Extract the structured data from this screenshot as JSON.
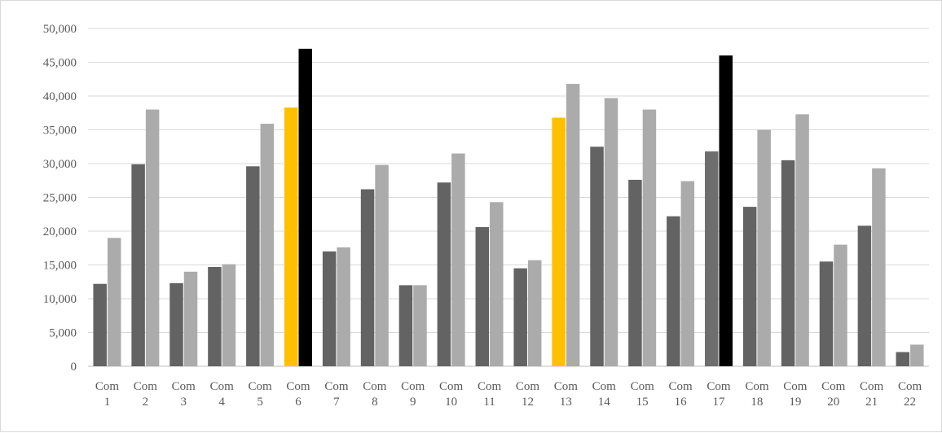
{
  "chart_data": {
    "type": "bar",
    "title": "",
    "xlabel": "",
    "ylabel": "",
    "ylim": [
      0,
      50000
    ],
    "y_ticks": [
      "0",
      "5,000",
      "10,000",
      "15,000",
      "20,000",
      "25,000",
      "30,000",
      "35,000",
      "40,000",
      "45,000",
      "50,000"
    ],
    "y_tick_values": [
      0,
      5000,
      10000,
      15000,
      20000,
      25000,
      30000,
      35000,
      40000,
      45000,
      50000
    ],
    "grid": true,
    "legend": "none",
    "categories": [
      [
        "Com",
        "1"
      ],
      [
        "Com",
        "2"
      ],
      [
        "Com",
        "3"
      ],
      [
        "Com",
        "4"
      ],
      [
        "Com",
        "5"
      ],
      [
        "Com",
        "6"
      ],
      [
        "Com",
        "7"
      ],
      [
        "Com",
        "8"
      ],
      [
        "Com",
        "9"
      ],
      [
        "Com",
        "10"
      ],
      [
        "Com",
        "11"
      ],
      [
        "Com",
        "12"
      ],
      [
        "Com",
        "13"
      ],
      [
        "Com",
        "14"
      ],
      [
        "Com",
        "15"
      ],
      [
        "Com",
        "16"
      ],
      [
        "Com",
        "17"
      ],
      [
        "Com",
        "18"
      ],
      [
        "Com",
        "19"
      ],
      [
        "Com",
        "20"
      ],
      [
        "Com",
        "21"
      ],
      [
        "Com",
        "22"
      ]
    ],
    "series": [
      {
        "color": "#636363",
        "values": [
          12200,
          29900,
          12300,
          14700,
          29600,
          38300,
          17000,
          26200,
          12000,
          27200,
          20600,
          14500,
          36800,
          32500,
          27600,
          22200,
          31800,
          23600,
          30500,
          15500,
          20800,
          2100
        ]
      },
      {
        "color": "#ababab",
        "values": [
          19000,
          38000,
          14000,
          15100,
          35900,
          47000,
          17600,
          29800,
          12000,
          31500,
          24300,
          15700,
          41800,
          39700,
          38000,
          27400,
          46000,
          35000,
          37300,
          18000,
          29300,
          3200
        ]
      }
    ],
    "highlight_colors": {
      "6": [
        "#ffc000",
        "#000000"
      ],
      "13": [
        "#ffc000",
        "#ababab"
      ],
      "17": [
        "#6e6e6e",
        "#000000"
      ]
    },
    "colors": {
      "grid": "#d9d9d9",
      "axis": "#bfbfbf",
      "text": "#595959"
    }
  }
}
